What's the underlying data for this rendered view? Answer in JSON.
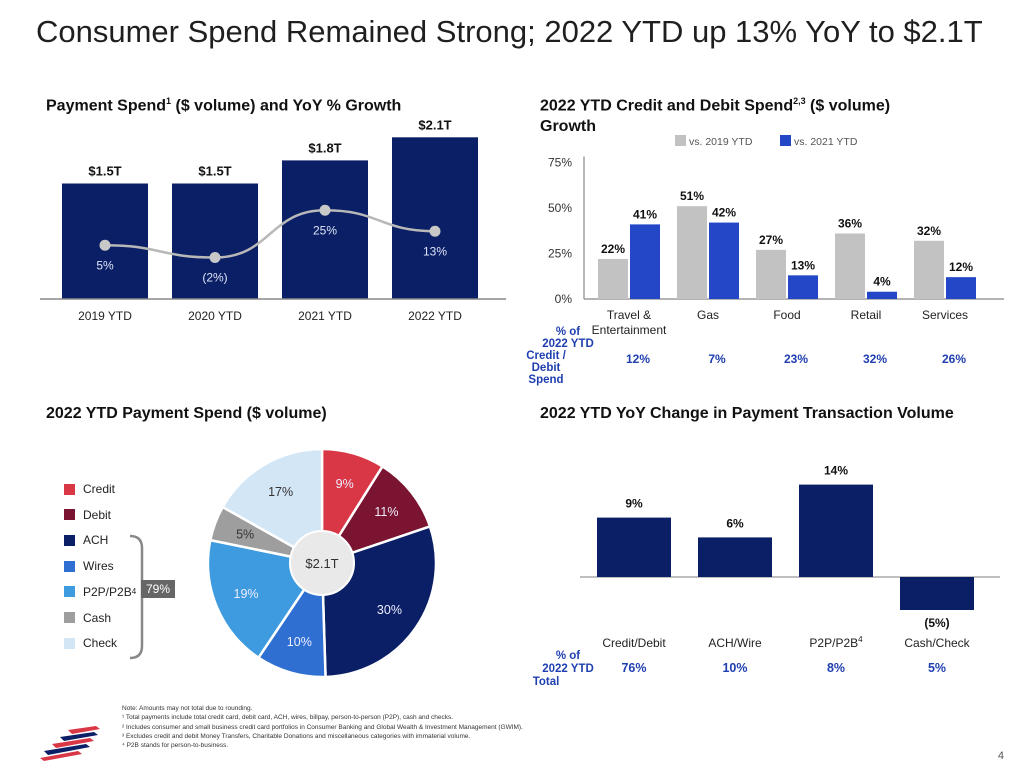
{
  "title": "Consumer Spend Remained Strong; 2022 YTD up 13% YoY to $2.1T",
  "colors": {
    "navy": "#0a1f66",
    "blue": "#2447c8",
    "gray": "#c2c2c2",
    "accent_label": "#1f3fb0"
  },
  "chart_data": [
    {
      "type": "bar",
      "title_main": "Payment Spend",
      "title_sup": "1",
      "title_rest": " ($ volume) and YoY % Growth",
      "categories": [
        "2019 YTD",
        "2020 YTD",
        "2021 YTD",
        "2022 YTD"
      ],
      "values": [
        1.5,
        1.5,
        1.8,
        2.1
      ],
      "value_labels": [
        "$1.5T",
        "$1.5T",
        "$1.8T",
        "$2.1T"
      ],
      "series": [
        {
          "name": "",
          "kind": "bar",
          "values": [
            1.5,
            1.5,
            1.8,
            2.1
          ]
        },
        {
          "name": "",
          "kind": "line",
          "values": [
            5,
            -2,
            25,
            13
          ]
        }
      ],
      "growth_labels": [
        "5%",
        "(2%)",
        "25%",
        "13%"
      ],
      "ylim": [
        0,
        2.2
      ]
    },
    {
      "type": "bar",
      "title_main": "2022 YTD Credit and Debit Spend",
      "title_sup": "2,3",
      "title_rest": " ($ volume)",
      "title_line2": "Growth",
      "categories": [
        "Travel &\nEntertainment",
        "Gas",
        "Food",
        "Retail",
        "Services"
      ],
      "series": [
        {
          "name": "vs. 2019 YTD",
          "values": [
            22,
            51,
            27,
            36,
            32
          ]
        },
        {
          "name": "vs. 2021 YTD",
          "values": [
            41,
            42,
            13,
            4,
            12
          ]
        }
      ],
      "yticks": [
        "75%",
        "50%",
        "25%",
        "0%"
      ],
      "ylim": [
        0,
        75
      ],
      "share_label": "% of 2022 YTD Credit / Debit Spend",
      "share_values": [
        "12%",
        "7%",
        "23%",
        "32%",
        "26%"
      ]
    },
    {
      "type": "pie",
      "title": "2022 YTD Payment Spend ($ volume)",
      "center_label": "$2.1T",
      "categories": [
        "Credit",
        "Debit",
        "ACH",
        "Wires",
        "P2P/P2B",
        "Cash",
        "Check"
      ],
      "category_sups": [
        "",
        "",
        "",
        "",
        "4",
        "",
        ""
      ],
      "values": [
        9,
        11,
        30,
        10,
        19,
        5,
        17
      ],
      "slice_labels": [
        "9%",
        "11%",
        "30%",
        "10%",
        "19%",
        "5%",
        "17%"
      ],
      "colors": [
        "#d93646",
        "#7a1430",
        "#0a1f66",
        "#2f6fd1",
        "#3f9be0",
        "#9e9e9e",
        "#d3e6f6"
      ],
      "bracket_label": "79%"
    },
    {
      "type": "bar",
      "title": "2022 YTD YoY Change in Payment Transaction Volume",
      "categories": [
        "Credit/Debit",
        "ACH/Wire",
        "P2P/P2B",
        "Cash/Check"
      ],
      "category_sups": [
        "",
        "",
        "4",
        ""
      ],
      "values": [
        9,
        6,
        14,
        -5
      ],
      "value_labels": [
        "9%",
        "6%",
        "14%",
        "(5%)"
      ],
      "share_label": "% of 2022 YTD Total",
      "share_values": [
        "76%",
        "10%",
        "8%",
        "5%"
      ]
    }
  ],
  "footnotes": [
    "Note: Amounts may not total due to rounding.",
    "¹ Total payments include total credit card, debit card, ACH, wires, billpay, person-to-person (P2P), cash and checks.",
    "² Includes consumer and small business credit card portfolios in Consumer Banking and Global Wealth & Investment Management (GWIM).",
    "³ Excludes credit and debit Money Transfers, Charitable Donations and miscellaneous categories with immaterial volume.",
    "⁴ P2B stands for person-to-business."
  ],
  "page_number": "4",
  "logo": "flag-logo"
}
